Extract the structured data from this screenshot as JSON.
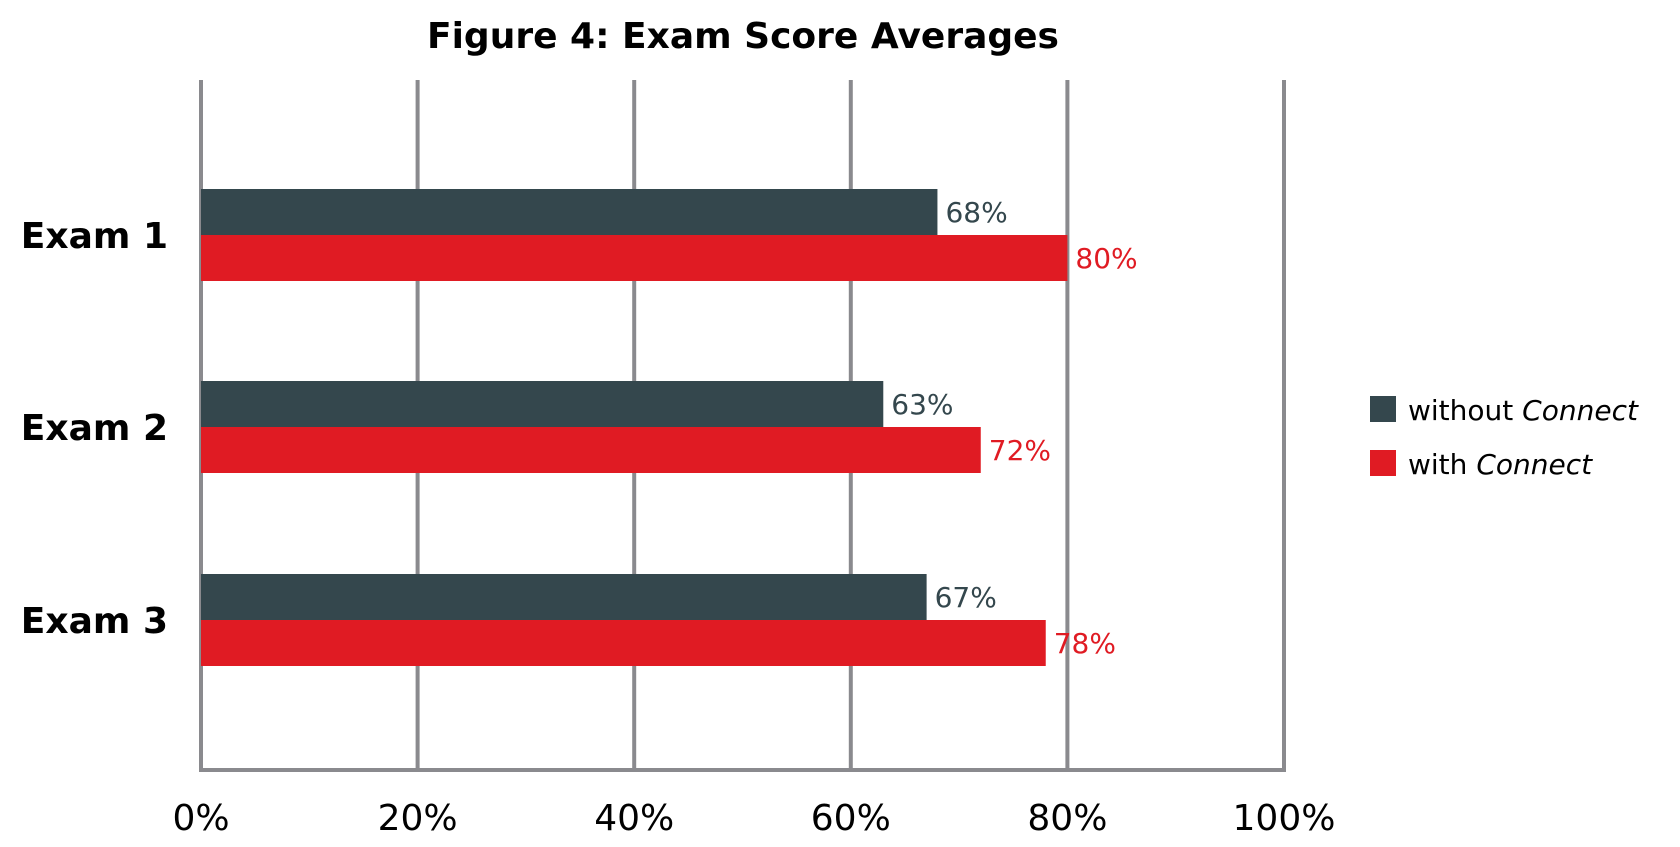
{
  "chart_data": {
    "type": "bar",
    "orientation": "horizontal",
    "title": "Figure 4: Exam Score Averages",
    "categories": [
      "Exam 1",
      "Exam 2",
      "Exam 3"
    ],
    "series": [
      {
        "name_prefix": "without",
        "name_emphasis": "Connect",
        "color": "#34474d",
        "values": [
          68,
          63,
          67
        ],
        "labels": [
          "68%",
          "63%",
          "67%"
        ]
      },
      {
        "name_prefix": "with",
        "name_emphasis": "Connect",
        "color": "#e01b23",
        "values": [
          80,
          72,
          78
        ],
        "labels": [
          "80%",
          "72%",
          "78%"
        ]
      }
    ],
    "xlim": [
      0,
      100
    ],
    "x_ticks": [
      0,
      20,
      40,
      60,
      80,
      100
    ],
    "x_tick_labels": [
      "0%",
      "20%",
      "40%",
      "60%",
      "80%",
      "100%"
    ],
    "grid": true,
    "grid_color": "#8a8a8e",
    "legend_position": "right"
  }
}
